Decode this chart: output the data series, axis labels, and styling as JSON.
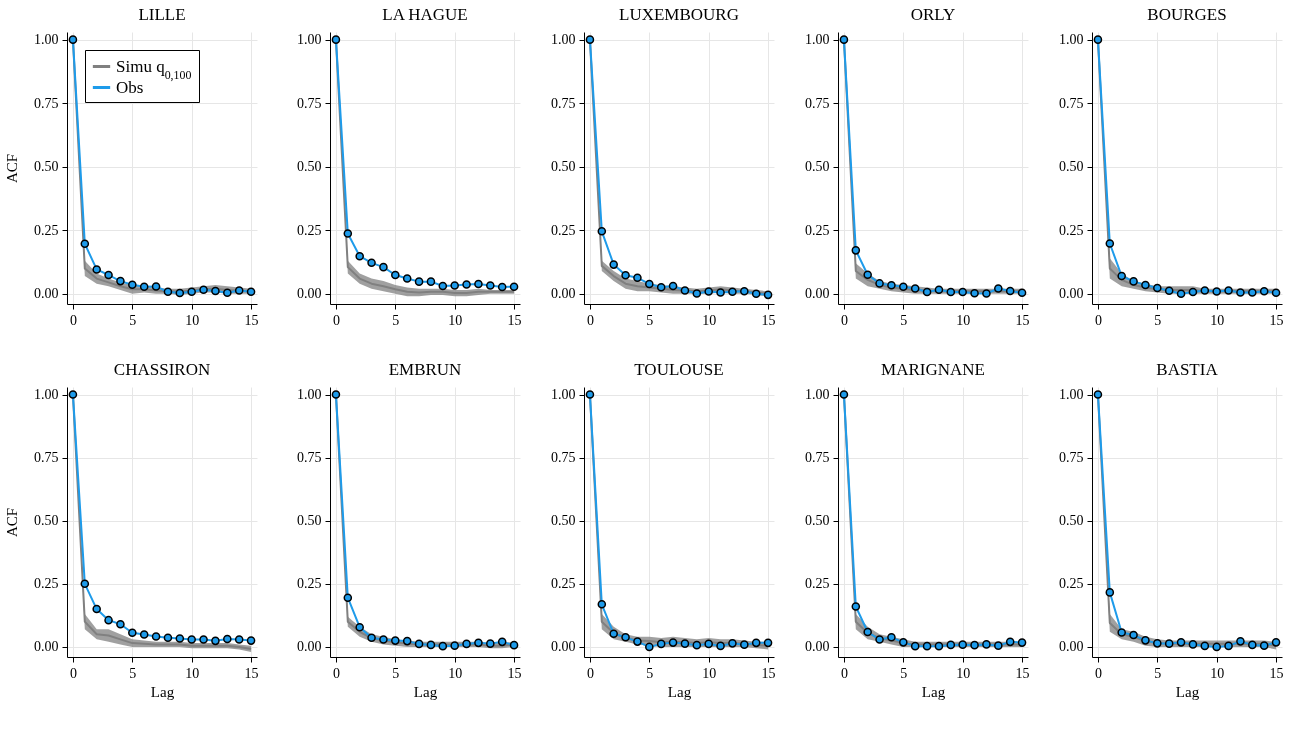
{
  "chart_data": [
    {
      "type": "line",
      "title": "LILLE",
      "ylabel": "ACF",
      "x": [
        0,
        1,
        2,
        3,
        4,
        5,
        6,
        7,
        8,
        9,
        10,
        11,
        12,
        13,
        14,
        15
      ],
      "xlim": [
        -0.5,
        15.5
      ],
      "xticks": [
        0,
        5,
        10,
        15
      ],
      "ylim": [
        -0.04,
        1.03
      ],
      "yticks": [
        {
          "value": 0,
          "label": "0.00"
        },
        {
          "value": 0.25,
          "label": "0.25"
        },
        {
          "value": 0.5,
          "label": "0.50"
        },
        {
          "value": 0.75,
          "label": "0.75"
        },
        {
          "value": 1,
          "label": "1.00"
        }
      ],
      "grid": true,
      "legend": "top left",
      "series": [
        {
          "name": "Simu q$_{0,100}$",
          "color": "#808080",
          "values": [
            1,
            0.1,
            0.06,
            0.045,
            0.03,
            0.018,
            0.018,
            0.013,
            0.01,
            0.008,
            0.013,
            0.018,
            0.02,
            0.015,
            0.013,
            0.01
          ],
          "lower": [
            1,
            0.07,
            0.04,
            0.03,
            0.015,
            0,
            0.005,
            0,
            0,
            -0.005,
            0,
            0.005,
            0.005,
            0,
            0,
            0
          ],
          "upper": [
            1,
            0.13,
            0.08,
            0.06,
            0.045,
            0.035,
            0.03,
            0.025,
            0.02,
            0.02,
            0.025,
            0.03,
            0.035,
            0.03,
            0.025,
            0.02
          ]
        },
        {
          "name": "Obs",
          "color": "#1e9bea",
          "marker": "circle",
          "values": [
            1,
            0.197,
            0.096,
            0.074,
            0.05,
            0.036,
            0.028,
            0.029,
            0.008,
            0.003,
            0.008,
            0.016,
            0.011,
            0.004,
            0.013,
            0.008
          ]
        }
      ]
    },
    {
      "type": "line",
      "title": "LA HAGUE",
      "x": [
        0,
        1,
        2,
        3,
        4,
        5,
        6,
        7,
        8,
        9,
        10,
        11,
        12,
        13,
        14,
        15
      ],
      "xlim": [
        -0.5,
        15.5
      ],
      "xticks": [
        0,
        5,
        10,
        15
      ],
      "ylim": [
        -0.04,
        1.03
      ],
      "yticks": [
        {
          "value": 0,
          "label": "0.00"
        },
        {
          "value": 0.25,
          "label": "0.25"
        },
        {
          "value": 0.5,
          "label": "0.50"
        },
        {
          "value": 0.75,
          "label": "0.75"
        },
        {
          "value": 1,
          "label": "1.00"
        }
      ],
      "grid": true,
      "series": [
        {
          "color": "#808080",
          "values": [
            1,
            0.105,
            0.06,
            0.04,
            0.03,
            0.018,
            0.008,
            0.005,
            0.008,
            0.008,
            0.003,
            0.003,
            0.008,
            0.008,
            0.008,
            0.008
          ],
          "lower": [
            1,
            0.08,
            0.04,
            0.02,
            0.01,
            0,
            -0.01,
            -0.01,
            -0.005,
            -0.005,
            -0.01,
            -0.01,
            -0.005,
            0,
            0,
            0
          ],
          "upper": [
            1,
            0.13,
            0.08,
            0.06,
            0.05,
            0.035,
            0.025,
            0.02,
            0.02,
            0.02,
            0.015,
            0.015,
            0.02,
            0.015,
            0.015,
            0.015
          ]
        },
        {
          "color": "#1e9bea",
          "marker": "circle",
          "values": [
            1,
            0.237,
            0.148,
            0.122,
            0.105,
            0.074,
            0.06,
            0.048,
            0.048,
            0.031,
            0.033,
            0.037,
            0.039,
            0.033,
            0.027,
            0.028
          ]
        }
      ]
    },
    {
      "type": "line",
      "title": "LUXEMBOURG",
      "x": [
        0,
        1,
        2,
        3,
        4,
        5,
        6,
        7,
        8,
        9,
        10,
        11,
        12,
        13,
        14,
        15
      ],
      "xlim": [
        -0.5,
        15.5
      ],
      "xticks": [
        0,
        5,
        10,
        15
      ],
      "ylim": [
        -0.04,
        1.03
      ],
      "yticks": [
        {
          "value": 0,
          "label": "0.00"
        },
        {
          "value": 0.25,
          "label": "0.25"
        },
        {
          "value": 0.5,
          "label": "0.50"
        },
        {
          "value": 0.75,
          "label": "0.75"
        },
        {
          "value": 1,
          "label": "1.00"
        }
      ],
      "grid": true,
      "series": [
        {
          "color": "#808080",
          "values": [
            1,
            0.11,
            0.07,
            0.04,
            0.03,
            0.025,
            0.02,
            0.015,
            0.013,
            0.01,
            0.013,
            0.018,
            0.013,
            0.01,
            0.005,
            0
          ],
          "lower": [
            1,
            0.09,
            0.05,
            0.02,
            0.01,
            0.01,
            0.005,
            0,
            0,
            0,
            0,
            0.005,
            0,
            0,
            -0.005,
            -0.01
          ],
          "upper": [
            1,
            0.13,
            0.09,
            0.06,
            0.05,
            0.04,
            0.035,
            0.03,
            0.025,
            0.02,
            0.025,
            0.03,
            0.025,
            0.02,
            0.015,
            0.01
          ]
        },
        {
          "color": "#1e9bea",
          "marker": "circle",
          "values": [
            1,
            0.246,
            0.115,
            0.073,
            0.063,
            0.039,
            0.026,
            0.031,
            0.013,
            0.001,
            0.009,
            0.005,
            0.008,
            0.01,
            0,
            -0.004
          ]
        }
      ]
    },
    {
      "type": "line",
      "title": "ORLY",
      "x": [
        0,
        1,
        2,
        3,
        4,
        5,
        6,
        7,
        8,
        9,
        10,
        11,
        12,
        13,
        14,
        15
      ],
      "xlim": [
        -0.5,
        15.5
      ],
      "xticks": [
        0,
        5,
        10,
        15
      ],
      "ylim": [
        -0.04,
        1.03
      ],
      "yticks": [
        {
          "value": 0,
          "label": "0.00"
        },
        {
          "value": 0.25,
          "label": "0.25"
        },
        {
          "value": 0.5,
          "label": "0.50"
        },
        {
          "value": 0.75,
          "label": "0.75"
        },
        {
          "value": 1,
          "label": "1.00"
        }
      ],
      "grid": true,
      "series": [
        {
          "color": "#808080",
          "values": [
            1,
            0.09,
            0.055,
            0.035,
            0.025,
            0.02,
            0.015,
            0.013,
            0.01,
            0.01,
            0.01,
            0.01,
            0.01,
            0.01,
            0.01,
            0.01
          ],
          "lower": [
            1,
            0.06,
            0.03,
            0.02,
            0.01,
            0.005,
            0,
            0,
            0,
            0,
            0,
            0,
            0,
            0,
            0,
            0
          ],
          "upper": [
            1,
            0.12,
            0.08,
            0.05,
            0.04,
            0.035,
            0.03,
            0.025,
            0.02,
            0.02,
            0.02,
            0.02,
            0.02,
            0.02,
            0.02,
            0.02
          ]
        },
        {
          "color": "#1e9bea",
          "marker": "circle",
          "values": [
            1,
            0.171,
            0.075,
            0.041,
            0.034,
            0.028,
            0.021,
            0.007,
            0.016,
            0.007,
            0.007,
            0.002,
            0.001,
            0.021,
            0.011,
            0.004
          ]
        }
      ]
    },
    {
      "type": "line",
      "title": "BOURGES",
      "x": [
        0,
        1,
        2,
        3,
        4,
        5,
        6,
        7,
        8,
        9,
        10,
        11,
        12,
        13,
        14,
        15
      ],
      "xlim": [
        -0.5,
        15.5
      ],
      "xticks": [
        0,
        5,
        10,
        15
      ],
      "ylim": [
        -0.04,
        1.03
      ],
      "yticks": [
        {
          "value": 0,
          "label": "0.00"
        },
        {
          "value": 0.25,
          "label": "0.25"
        },
        {
          "value": 0.5,
          "label": "0.50"
        },
        {
          "value": 0.75,
          "label": "0.75"
        },
        {
          "value": 1,
          "label": "1.00"
        }
      ],
      "grid": true,
      "series": [
        {
          "color": "#808080",
          "values": [
            1,
            0.1,
            0.055,
            0.035,
            0.025,
            0.018,
            0.015,
            0.015,
            0.015,
            0.01,
            0.01,
            0.01,
            0.01,
            0.01,
            0.01,
            0.01
          ],
          "lower": [
            1,
            0.06,
            0.03,
            0.02,
            0.01,
            0.005,
            0,
            0,
            0,
            0,
            0,
            0,
            0,
            0,
            0,
            0
          ],
          "upper": [
            1,
            0.14,
            0.08,
            0.05,
            0.04,
            0.03,
            0.03,
            0.03,
            0.03,
            0.02,
            0.02,
            0.02,
            0.02,
            0.02,
            0.02,
            0.02
          ]
        },
        {
          "color": "#1e9bea",
          "marker": "circle",
          "values": [
            1,
            0.198,
            0.07,
            0.049,
            0.035,
            0.023,
            0.012,
            0,
            0.007,
            0.013,
            0.009,
            0.013,
            0.005,
            0.005,
            0.01,
            0.004
          ]
        }
      ]
    },
    {
      "type": "line",
      "title": "CHASSIRON",
      "xlabel": "Lag",
      "ylabel": "ACF",
      "x": [
        0,
        1,
        2,
        3,
        4,
        5,
        6,
        7,
        8,
        9,
        10,
        11,
        12,
        13,
        14,
        15
      ],
      "xlim": [
        -0.5,
        15.5
      ],
      "xticks": [
        0,
        5,
        10,
        15
      ],
      "ylim": [
        -0.04,
        1.03
      ],
      "yticks": [
        {
          "value": 0,
          "label": "0.00"
        },
        {
          "value": 0.25,
          "label": "0.25"
        },
        {
          "value": 0.5,
          "label": "0.50"
        },
        {
          "value": 0.75,
          "label": "0.75"
        },
        {
          "value": 1,
          "label": "1.00"
        }
      ],
      "grid": true,
      "series": [
        {
          "color": "#808080",
          "values": [
            1,
            0.1,
            0.05,
            0.045,
            0.03,
            0.015,
            0.013,
            0.01,
            0.01,
            0.01,
            0.005,
            0.005,
            0.005,
            0.005,
            0,
            -0.008
          ],
          "lower": [
            1,
            0.07,
            0.03,
            0.02,
            0.01,
            0,
            0,
            0,
            0,
            0,
            -0.005,
            -0.005,
            -0.005,
            -0.005,
            -0.01,
            -0.02
          ],
          "upper": [
            1,
            0.13,
            0.07,
            0.07,
            0.05,
            0.03,
            0.025,
            0.02,
            0.02,
            0.02,
            0.015,
            0.015,
            0.015,
            0.015,
            0.01,
            0.005
          ]
        },
        {
          "color": "#1e9bea",
          "marker": "circle",
          "values": [
            1,
            0.25,
            0.15,
            0.106,
            0.09,
            0.056,
            0.049,
            0.041,
            0.036,
            0.033,
            0.029,
            0.029,
            0.024,
            0.031,
            0.029,
            0.025
          ]
        }
      ]
    },
    {
      "type": "line",
      "title": "EMBRUN",
      "xlabel": "Lag",
      "x": [
        0,
        1,
        2,
        3,
        4,
        5,
        6,
        7,
        8,
        9,
        10,
        11,
        12,
        13,
        14,
        15
      ],
      "xlim": [
        -0.5,
        15.5
      ],
      "xticks": [
        0,
        5,
        10,
        15
      ],
      "ylim": [
        -0.04,
        1.03
      ],
      "yticks": [
        {
          "value": 0,
          "label": "0.00"
        },
        {
          "value": 0.25,
          "label": "0.25"
        },
        {
          "value": 0.5,
          "label": "0.50"
        },
        {
          "value": 0.75,
          "label": "0.75"
        },
        {
          "value": 1,
          "label": "1.00"
        }
      ],
      "grid": true,
      "series": [
        {
          "color": "#808080",
          "values": [
            1,
            0.1,
            0.06,
            0.035,
            0.025,
            0.018,
            0.013,
            0.01,
            0.01,
            0.01,
            0.01,
            0.01,
            0.01,
            0.005,
            0.005,
            0.01
          ],
          "lower": [
            1,
            0.08,
            0.04,
            0.02,
            0.01,
            0.005,
            0,
            0,
            0,
            0,
            0,
            0,
            0,
            -0.005,
            -0.005,
            0
          ],
          "upper": [
            1,
            0.12,
            0.08,
            0.05,
            0.04,
            0.03,
            0.025,
            0.02,
            0.02,
            0.02,
            0.02,
            0.02,
            0.02,
            0.015,
            0.015,
            0.02
          ]
        },
        {
          "color": "#1e9bea",
          "marker": "circle",
          "values": [
            1,
            0.195,
            0.078,
            0.036,
            0.029,
            0.025,
            0.023,
            0.012,
            0.008,
            0.003,
            0.005,
            0.012,
            0.016,
            0.013,
            0.02,
            0.007
          ]
        }
      ]
    },
    {
      "type": "line",
      "title": "TOULOUSE",
      "xlabel": "Lag",
      "x": [
        0,
        1,
        2,
        3,
        4,
        5,
        6,
        7,
        8,
        9,
        10,
        11,
        12,
        13,
        14,
        15
      ],
      "xlim": [
        -0.5,
        15.5
      ],
      "xticks": [
        0,
        5,
        10,
        15
      ],
      "ylim": [
        -0.04,
        1.03
      ],
      "yticks": [
        {
          "value": 0,
          "label": "0.00"
        },
        {
          "value": 0.25,
          "label": "0.25"
        },
        {
          "value": 0.5,
          "label": "0.50"
        },
        {
          "value": 0.75,
          "label": "0.75"
        },
        {
          "value": 1,
          "label": "1.00"
        }
      ],
      "grid": true,
      "series": [
        {
          "color": "#808080",
          "values": [
            1,
            0.1,
            0.055,
            0.035,
            0.025,
            0.023,
            0.018,
            0.02,
            0.018,
            0.015,
            0.018,
            0.015,
            0.015,
            0.013,
            0.008,
            0.005
          ],
          "lower": [
            1,
            0.07,
            0.03,
            0.02,
            0.01,
            0.005,
            0,
            0,
            0,
            0,
            0,
            0,
            0,
            0,
            -0.005,
            -0.01
          ],
          "upper": [
            1,
            0.13,
            0.08,
            0.05,
            0.04,
            0.04,
            0.035,
            0.04,
            0.035,
            0.03,
            0.035,
            0.03,
            0.03,
            0.025,
            0.02,
            0.02
          ]
        },
        {
          "color": "#1e9bea",
          "marker": "circle",
          "values": [
            1,
            0.169,
            0.052,
            0.038,
            0.021,
            0,
            0.012,
            0.017,
            0.013,
            0.007,
            0.012,
            0.004,
            0.014,
            0.009,
            0.016,
            0.016
          ]
        }
      ]
    },
    {
      "type": "line",
      "title": "MARIGNANE",
      "xlabel": "Lag",
      "x": [
        0,
        1,
        2,
        3,
        4,
        5,
        6,
        7,
        8,
        9,
        10,
        11,
        12,
        13,
        14,
        15
      ],
      "xlim": [
        -0.5,
        15.5
      ],
      "xticks": [
        0,
        5,
        10,
        15
      ],
      "ylim": [
        -0.04,
        1.03
      ],
      "yticks": [
        {
          "value": 0,
          "label": "0.00"
        },
        {
          "value": 0.25,
          "label": "0.25"
        },
        {
          "value": 0.5,
          "label": "0.50"
        },
        {
          "value": 0.75,
          "label": "0.75"
        },
        {
          "value": 1,
          "label": "1.00"
        }
      ],
      "grid": true,
      "series": [
        {
          "color": "#808080",
          "values": [
            1,
            0.1,
            0.055,
            0.035,
            0.025,
            0.015,
            0.01,
            0.01,
            0.01,
            0.01,
            0.01,
            0.01,
            0.01,
            0.01,
            0.01,
            0.01
          ],
          "lower": [
            1,
            0.07,
            0.03,
            0.02,
            0.01,
            0,
            0,
            0,
            0,
            0,
            0,
            0,
            0,
            0,
            0,
            0
          ],
          "upper": [
            1,
            0.13,
            0.08,
            0.05,
            0.04,
            0.03,
            0.02,
            0.02,
            0.02,
            0.02,
            0.02,
            0.02,
            0.02,
            0.02,
            0.02,
            0.02
          ]
        },
        {
          "color": "#1e9bea",
          "marker": "circle",
          "values": [
            1,
            0.16,
            0.059,
            0.029,
            0.038,
            0.018,
            0.003,
            0.003,
            0.003,
            0.008,
            0.009,
            0.007,
            0.01,
            0.005,
            0.02,
            0.017
          ]
        }
      ]
    },
    {
      "type": "line",
      "title": "BASTIA",
      "xlabel": "Lag",
      "x": [
        0,
        1,
        2,
        3,
        4,
        5,
        6,
        7,
        8,
        9,
        10,
        11,
        12,
        13,
        14,
        15
      ],
      "xlim": [
        -0.5,
        15.5
      ],
      "xticks": [
        0,
        5,
        10,
        15
      ],
      "ylim": [
        -0.04,
        1.03
      ],
      "yticks": [
        {
          "value": 0,
          "label": "0.00"
        },
        {
          "value": 0.25,
          "label": "0.25"
        },
        {
          "value": 0.5,
          "label": "0.50"
        },
        {
          "value": 0.75,
          "label": "0.75"
        },
        {
          "value": 1,
          "label": "1.00"
        }
      ],
      "grid": true,
      "series": [
        {
          "color": "#808080",
          "values": [
            1,
            0.095,
            0.05,
            0.04,
            0.023,
            0.015,
            0.013,
            0.013,
            0.013,
            0.013,
            0.013,
            0.013,
            0.013,
            0.013,
            0.013,
            0.005
          ],
          "lower": [
            1,
            0.06,
            0.03,
            0.02,
            0.005,
            0,
            0,
            0,
            0,
            0,
            0,
            0,
            0,
            0,
            0,
            -0.01
          ],
          "upper": [
            1,
            0.13,
            0.07,
            0.06,
            0.04,
            0.03,
            0.025,
            0.025,
            0.025,
            0.025,
            0.025,
            0.025,
            0.025,
            0.025,
            0.025,
            0.02
          ]
        },
        {
          "color": "#1e9bea",
          "marker": "circle",
          "values": [
            1,
            0.216,
            0.057,
            0.047,
            0.026,
            0.014,
            0.013,
            0.018,
            0.01,
            0.004,
            0,
            0.004,
            0.022,
            0.008,
            0.005,
            0.018
          ]
        }
      ]
    }
  ]
}
